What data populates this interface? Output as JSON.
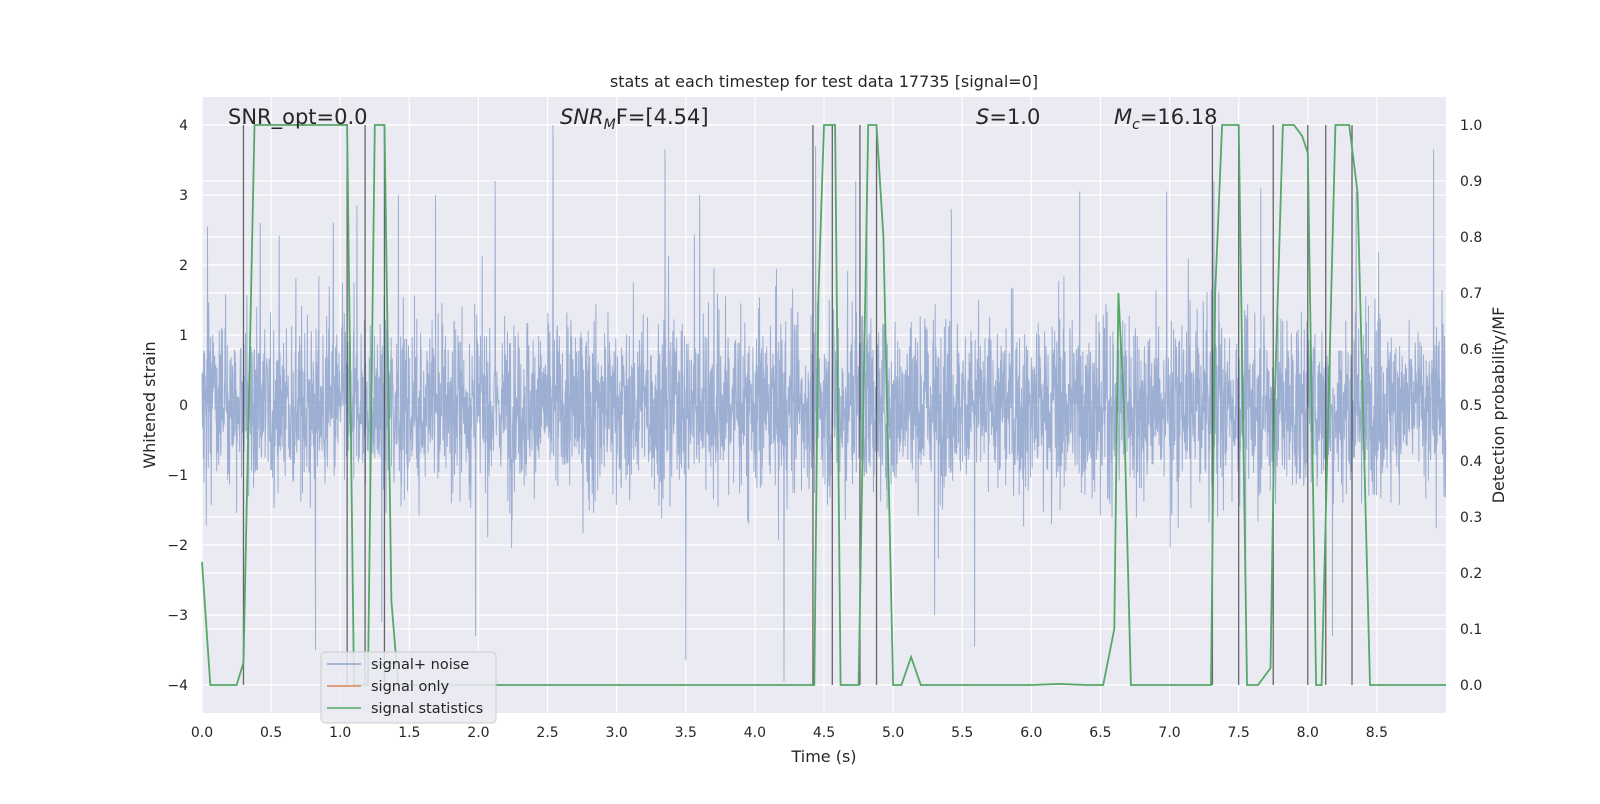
{
  "chart_data": {
    "type": "line",
    "title": "stats at each timestep for test data 17735 [signal=0]",
    "xlabel": "Time (s)",
    "ylabel_left": "Whitened strain",
    "ylabel_right": "Detection probability/MF",
    "xlim": [
      0.0,
      9.0
    ],
    "ylim_left": [
      -4.4,
      4.4
    ],
    "ylim_right": [
      -0.05,
      1.05
    ],
    "x_ticks": [
      "0.0",
      "0.5",
      "1.0",
      "1.5",
      "2.0",
      "2.5",
      "3.0",
      "3.5",
      "4.0",
      "4.5",
      "5.0",
      "5.5",
      "6.0",
      "6.5",
      "7.0",
      "7.5",
      "8.0",
      "8.5"
    ],
    "y_ticks_left": [
      "4",
      "3",
      "2",
      "1",
      "0",
      "−1",
      "−2",
      "−3",
      "−4"
    ],
    "y_ticks_right": [
      "1.0",
      "0.9",
      "0.8",
      "0.7",
      "0.6",
      "0.5",
      "0.4",
      "0.3",
      "0.2",
      "0.1",
      "0.0"
    ],
    "grid": true,
    "annotations": {
      "snr_opt": "SNR_opt=0.0",
      "snr_mf_sym": "SNR",
      "snr_mf_sub": "M",
      "snr_mf_rest": "F=[4.54]",
      "s_sym": "S",
      "s_rest": "=1.0",
      "mc_sym": "M",
      "mc_sub": "c",
      "mc_rest": "=16.18"
    },
    "legend": {
      "position": "lower-left",
      "entries": [
        "signal+ noise",
        "signal only",
        "signal statistics"
      ]
    },
    "series": [
      {
        "name": "signal+ noise",
        "color": "#8ea3cc",
        "kind": "noise",
        "envelope": 2.2,
        "samples_per_second": 480,
        "peak_values": [
          [
            0.04,
            2.55
          ],
          [
            0.42,
            2.6
          ],
          [
            0.95,
            2.6
          ],
          [
            1.12,
            2.85
          ],
          [
            1.42,
            3.0
          ],
          [
            1.69,
            3.0
          ],
          [
            2.12,
            3.2
          ],
          [
            2.54,
            4.0
          ],
          [
            3.35,
            3.65
          ],
          [
            3.6,
            3.0
          ],
          [
            4.44,
            3.7
          ],
          [
            4.73,
            3.2
          ],
          [
            4.81,
            3.35
          ],
          [
            5.42,
            2.8
          ],
          [
            6.35,
            3.05
          ],
          [
            6.98,
            3.05
          ],
          [
            7.32,
            3.2
          ],
          [
            7.66,
            3.1
          ],
          [
            8.35,
            3.05
          ],
          [
            8.91,
            3.65
          ],
          [
            0.82,
            -3.5
          ],
          [
            1.3,
            -3.1
          ],
          [
            1.98,
            -3.3
          ],
          [
            3.5,
            -3.65
          ],
          [
            4.21,
            -3.95
          ],
          [
            5.3,
            -3.0
          ],
          [
            5.59,
            -3.45
          ],
          [
            7.55,
            -2.9
          ],
          [
            8.18,
            -3.3
          ]
        ]
      },
      {
        "name": "signal only",
        "color": "#dd8452",
        "values": []
      },
      {
        "name": "signal statistics",
        "color": "#55a868",
        "axis": "right",
        "x": [
          0.0,
          0.06,
          0.25,
          0.3,
          0.38,
          0.45,
          0.6,
          0.8,
          1.0,
          1.05,
          1.1,
          1.15,
          1.2,
          1.25,
          1.32,
          1.37,
          1.42,
          1.48,
          1.6,
          2.0,
          3.0,
          4.0,
          4.3,
          4.43,
          4.46,
          4.5,
          4.58,
          4.62,
          4.69,
          4.75,
          4.82,
          4.88,
          4.93,
          5.0,
          5.06,
          5.13,
          5.2,
          5.26,
          5.5,
          6.0,
          6.2,
          6.4,
          6.52,
          6.6,
          6.63,
          6.67,
          6.72,
          7.0,
          7.3,
          7.33,
          7.38,
          7.5,
          7.56,
          7.64,
          7.73,
          7.76,
          7.82,
          7.9,
          7.96,
          8.0,
          8.06,
          8.1,
          8.2,
          8.24,
          8.3,
          8.36,
          8.45,
          8.6,
          9.0
        ],
        "values": [
          0.22,
          0.0,
          0.0,
          0.04,
          1.0,
          1.0,
          1.0,
          1.0,
          1.0,
          1.0,
          0.0,
          0.0,
          0.0,
          1.0,
          1.0,
          0.15,
          0.0,
          0.0,
          0.0,
          0.0,
          0.0,
          0.0,
          0.0,
          0.0,
          0.7,
          1.0,
          1.0,
          0.0,
          0.0,
          0.0,
          1.0,
          1.0,
          0.8,
          0.0,
          0.0,
          0.05,
          0.0,
          0.0,
          0.0,
          0.0,
          0.002,
          0.0,
          0.0,
          0.1,
          0.7,
          0.5,
          0.0,
          0.0,
          0.0,
          0.7,
          1.0,
          1.0,
          0.0,
          0.0,
          0.03,
          0.5,
          1.0,
          1.0,
          0.98,
          0.95,
          0.0,
          0.0,
          1.0,
          1.0,
          1.0,
          0.88,
          0.0,
          0.0,
          0.0
        ]
      }
    ],
    "vertical_markers": [
      0.3,
      1.05,
      1.18,
      1.32,
      4.42,
      4.56,
      4.76,
      4.88,
      7.31,
      7.5,
      7.75,
      8.0,
      8.13,
      8.32
    ]
  }
}
